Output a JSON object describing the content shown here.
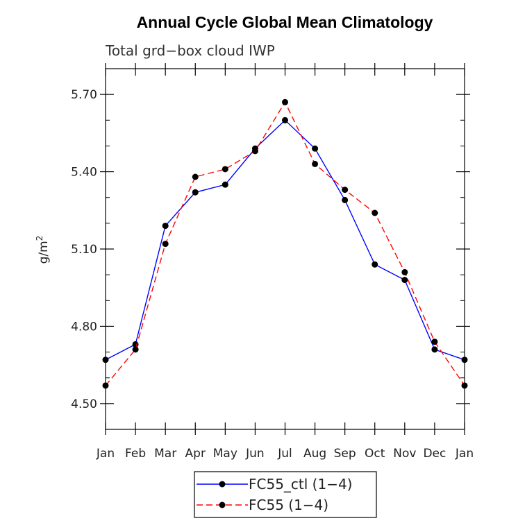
{
  "chart_data": {
    "type": "line",
    "title": "Annual Cycle Global Mean Climatology",
    "subtitle": "Total grd−box cloud IWP",
    "xlabel": "",
    "ylabel": "g/m",
    "ylabel_sup": "2",
    "categories": [
      "Jan",
      "Feb",
      "Mar",
      "Apr",
      "May",
      "Jun",
      "Jul",
      "Aug",
      "Sep",
      "Oct",
      "Nov",
      "Dec",
      "Jan"
    ],
    "ylim": [
      4.4,
      5.8
    ],
    "yticks": [
      4.5,
      4.8,
      5.1,
      5.4,
      5.7
    ],
    "ytick_labels": [
      "4.50",
      "4.80",
      "5.10",
      "5.40",
      "5.70"
    ],
    "grid": false,
    "legend_position": "bottom-center",
    "series": [
      {
        "name": "FC55_ctl (1−4)",
        "color": "#0000ff",
        "dash": "solid",
        "values": [
          4.67,
          4.73,
          5.19,
          5.32,
          5.35,
          5.49,
          5.6,
          5.49,
          5.29,
          5.04,
          4.98,
          4.71,
          4.67
        ]
      },
      {
        "name": "FC55 (1−4)",
        "color": "#ff0000",
        "dash": "dashed",
        "values": [
          4.57,
          4.71,
          5.12,
          5.38,
          5.41,
          5.48,
          5.67,
          5.43,
          5.33,
          5.24,
          5.01,
          4.74,
          4.57
        ]
      }
    ]
  }
}
